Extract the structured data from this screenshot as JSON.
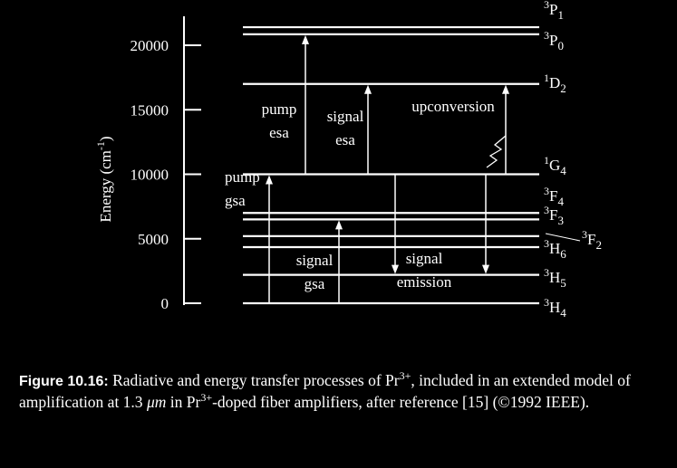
{
  "axis": {
    "label": {
      "main": "Energy (cm",
      "sup": "-1",
      "end": ")"
    },
    "ylim": [
      0,
      22000
    ],
    "yticks": [
      0,
      5000,
      10000,
      15000,
      20000
    ]
  },
  "levels": [
    {
      "mult": "3",
      "L": "H",
      "J": "4",
      "energy": 0
    },
    {
      "mult": "3",
      "L": "H",
      "J": "5",
      "energy": 2200
    },
    {
      "mult": "3",
      "L": "H",
      "J": "6",
      "energy": 4350
    },
    {
      "mult": "3",
      "L": "F",
      "J": "2",
      "energy": 5200
    },
    {
      "mult": "3",
      "L": "F",
      "J": "3",
      "energy": 6500
    },
    {
      "mult": "3",
      "L": "F",
      "J": "4",
      "energy": 7000
    },
    {
      "mult": "1",
      "L": "G",
      "J": "4",
      "energy": 10000
    },
    {
      "mult": "1",
      "L": "D",
      "J": "2",
      "energy": 17000
    },
    {
      "mult": "3",
      "L": "P",
      "J": "0",
      "energy": 20850
    },
    {
      "mult": "3",
      "L": "P",
      "J": "1",
      "energy": 21400
    }
  ],
  "transitions": [
    {
      "from": 0,
      "to": 6,
      "label": [
        "pump",
        "gsa"
      ]
    },
    {
      "from": 6,
      "to": 8,
      "label": [
        "pump",
        "esa"
      ]
    },
    {
      "from": 6,
      "to": 7,
      "label": [
        "signal",
        "esa"
      ]
    },
    {
      "from": 6,
      "to": 7,
      "label": [
        "upconversion"
      ]
    },
    {
      "from": 0,
      "to": 4,
      "label": [
        "signal",
        "gsa"
      ]
    },
    {
      "from": 6,
      "to": 1,
      "label": [
        "signal",
        "emission"
      ]
    },
    {
      "from": 6,
      "to": 1
    }
  ],
  "caption": {
    "label": "Figure 10.16:",
    "parts": [
      {
        "text": " Radiative and energy transfer processes of Pr"
      },
      {
        "sup": "3+"
      },
      {
        "text": ", included in an extended model of amplification at 1.3 "
      },
      {
        "italic": "μm"
      },
      {
        "text": " in Pr"
      },
      {
        "sup": "3+"
      },
      {
        "text": "-doped fiber amplifiers, after reference [15] (©1992 IEEE)."
      }
    ]
  }
}
